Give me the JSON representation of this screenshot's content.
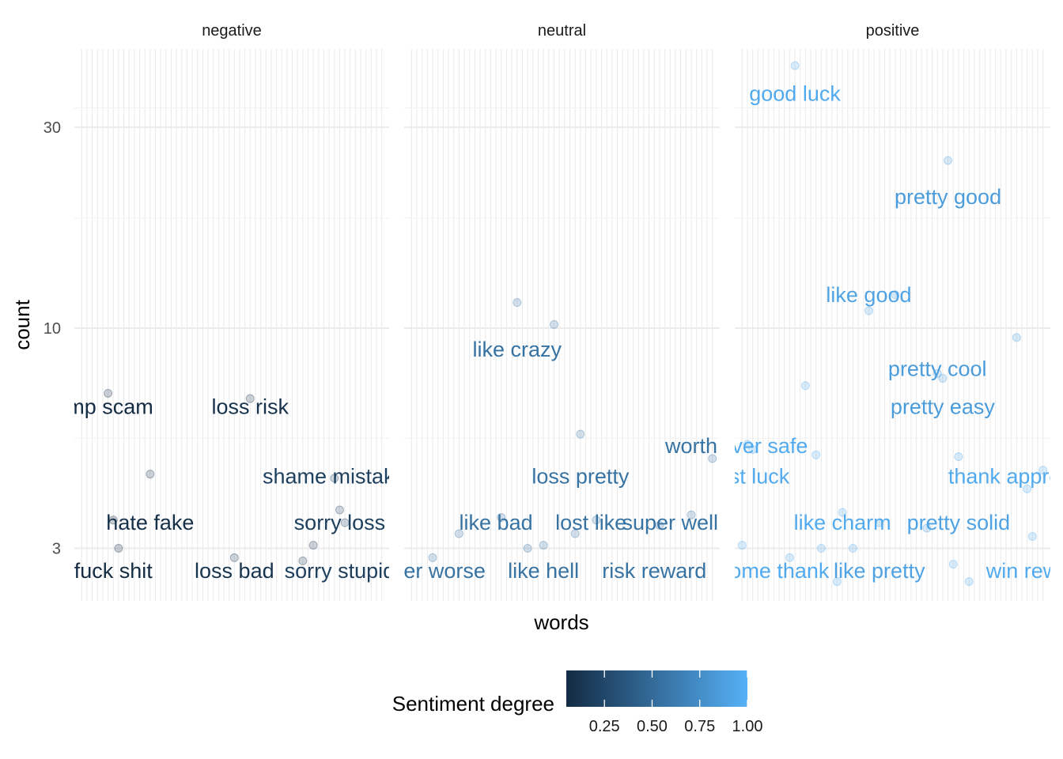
{
  "chart_data": {
    "type": "scatter",
    "title": "",
    "xlabel": "words",
    "ylabel": "count",
    "y_scale": "log10",
    "ylim": [
      2.25,
      46
    ],
    "y_ticks": [
      3,
      10,
      30
    ],
    "y_tick_labels": [
      "3",
      "10",
      "30"
    ],
    "grid": true,
    "x_categories_per_panel": 58,
    "facets": [
      {
        "name": "negative",
        "points": [
          {
            "x": 5,
            "y": 7.0,
            "deg": 0.05
          },
          {
            "x": 6,
            "y": 3.5,
            "deg": 0.05
          },
          {
            "x": 7,
            "y": 3.0,
            "deg": 0.05
          },
          {
            "x": 13,
            "y": 4.5,
            "deg": 0.08
          },
          {
            "x": 29,
            "y": 2.85,
            "deg": 0.12
          },
          {
            "x": 32,
            "y": 6.8,
            "deg": 0.1
          },
          {
            "x": 42,
            "y": 2.8,
            "deg": 0.12
          },
          {
            "x": 44,
            "y": 3.05,
            "deg": 0.12
          },
          {
            "x": 48,
            "y": 4.4,
            "deg": 0.2
          },
          {
            "x": 49,
            "y": 3.7,
            "deg": 0.2
          },
          {
            "x": 50,
            "y": 3.45,
            "deg": 0.2
          }
        ],
        "labels": [
          {
            "text": "trump scam",
            "x": 3,
            "y": 6.5,
            "deg": 0.05
          },
          {
            "text": "hate fake",
            "x": 13,
            "y": 3.45,
            "deg": 0.08
          },
          {
            "text": "fuck shit",
            "x": 6,
            "y": 2.65,
            "deg": 0.05
          },
          {
            "text": "loss risk",
            "x": 32,
            "y": 6.5,
            "deg": 0.1
          },
          {
            "text": "loss bad",
            "x": 29,
            "y": 2.65,
            "deg": 0.12
          },
          {
            "text": "shame mistake",
            "x": 48,
            "y": 4.45,
            "deg": 0.2
          },
          {
            "text": "sorry loss",
            "x": 49,
            "y": 3.45,
            "deg": 0.2
          },
          {
            "text": "sorry stupid",
            "x": 49,
            "y": 2.65,
            "deg": 0.2
          }
        ]
      },
      {
        "name": "neutral",
        "points": [
          {
            "x": 4,
            "y": 2.85,
            "deg": 0.55
          },
          {
            "x": 9,
            "y": 3.25,
            "deg": 0.55
          },
          {
            "x": 17,
            "y": 3.55,
            "deg": 0.55
          },
          {
            "x": 20,
            "y": 11.5,
            "deg": 0.55
          },
          {
            "x": 22,
            "y": 3.0,
            "deg": 0.55
          },
          {
            "x": 25,
            "y": 3.05,
            "deg": 0.55
          },
          {
            "x": 27,
            "y": 10.2,
            "deg": 0.55
          },
          {
            "x": 31,
            "y": 3.25,
            "deg": 0.55
          },
          {
            "x": 32,
            "y": 5.6,
            "deg": 0.55
          },
          {
            "x": 35,
            "y": 3.5,
            "deg": 0.55
          },
          {
            "x": 47,
            "y": 3.4,
            "deg": 0.55
          },
          {
            "x": 53,
            "y": 3.6,
            "deg": 0.55
          },
          {
            "x": 57,
            "y": 4.9,
            "deg": 0.55
          }
        ],
        "labels": [
          {
            "text": "like crazy",
            "x": 20,
            "y": 8.9,
            "deg": 0.55
          },
          {
            "text": "loss pretty",
            "x": 32,
            "y": 4.45,
            "deg": 0.55
          },
          {
            "text": "worth",
            "x": 53,
            "y": 5.25,
            "deg": 0.55
          },
          {
            "text": "like bad",
            "x": 16,
            "y": 3.45,
            "deg": 0.55
          },
          {
            "text": "lost like",
            "x": 34,
            "y": 3.45,
            "deg": 0.55
          },
          {
            "text": "super well",
            "x": 49,
            "y": 3.45,
            "deg": 0.55
          },
          {
            "text": "never worse",
            "x": 3,
            "y": 2.65,
            "deg": 0.55
          },
          {
            "text": "like hell",
            "x": 25,
            "y": 2.65,
            "deg": 0.55
          },
          {
            "text": "risk reward",
            "x": 46,
            "y": 2.65,
            "deg": 0.55
          }
        ]
      },
      {
        "name": "positive",
        "points": [
          {
            "x": 0,
            "y": 3.05,
            "deg": 0.95
          },
          {
            "x": 1,
            "y": 5.3,
            "deg": 0.95
          },
          {
            "x": 2,
            "y": 5.15,
            "deg": 0.95
          },
          {
            "x": 9,
            "y": 2.85,
            "deg": 0.95
          },
          {
            "x": 10,
            "y": 42,
            "deg": 0.95
          },
          {
            "x": 12,
            "y": 7.3,
            "deg": 0.95
          },
          {
            "x": 14,
            "y": 5.0,
            "deg": 0.95
          },
          {
            "x": 15,
            "y": 3.0,
            "deg": 0.95
          },
          {
            "x": 18,
            "y": 2.5,
            "deg": 0.95
          },
          {
            "x": 19,
            "y": 3.65,
            "deg": 0.95
          },
          {
            "x": 21,
            "y": 3.0,
            "deg": 0.95
          },
          {
            "x": 24,
            "y": 11.0,
            "deg": 0.9
          },
          {
            "x": 26,
            "y": 3.45,
            "deg": 0.9
          },
          {
            "x": 29,
            "y": 12.0,
            "deg": 0.9
          },
          {
            "x": 35,
            "y": 3.35,
            "deg": 0.85
          },
          {
            "x": 37,
            "y": 7.8,
            "deg": 0.85
          },
          {
            "x": 38,
            "y": 7.6,
            "deg": 0.85
          },
          {
            "x": 39,
            "y": 25,
            "deg": 0.85
          },
          {
            "x": 40,
            "y": 2.75,
            "deg": 0.95
          },
          {
            "x": 41,
            "y": 4.95,
            "deg": 0.95
          },
          {
            "x": 43,
            "y": 2.5,
            "deg": 0.95
          },
          {
            "x": 52,
            "y": 9.5,
            "deg": 0.85
          },
          {
            "x": 54,
            "y": 4.15,
            "deg": 0.95
          },
          {
            "x": 55,
            "y": 3.2,
            "deg": 0.95
          },
          {
            "x": 57,
            "y": 4.6,
            "deg": 0.95
          }
        ],
        "labels": [
          {
            "text": "good luck",
            "x": 10,
            "y": 36,
            "deg": 0.95
          },
          {
            "text": "pretty good",
            "x": 39,
            "y": 20.5,
            "deg": 0.85
          },
          {
            "text": "like good",
            "x": 24,
            "y": 12.0,
            "deg": 0.9
          },
          {
            "text": "pretty cool",
            "x": 37,
            "y": 8.0,
            "deg": 0.85
          },
          {
            "text": "pretty easy",
            "x": 38,
            "y": 6.5,
            "deg": 0.85
          },
          {
            "text": "never safe",
            "x": 3,
            "y": 5.25,
            "deg": 0.95
          },
          {
            "text": "best luck",
            "x": 1,
            "y": 4.45,
            "deg": 0.95
          },
          {
            "text": "thank appreciate",
            "x": 54,
            "y": 4.45,
            "deg": 0.95
          },
          {
            "text": "like charm",
            "x": 19,
            "y": 3.45,
            "deg": 0.95
          },
          {
            "text": "pretty solid",
            "x": 41,
            "y": 3.45,
            "deg": 0.9
          },
          {
            "text": "welcome thank",
            "x": 3,
            "y": 2.65,
            "deg": 0.95
          },
          {
            "text": "like pretty",
            "x": 26,
            "y": 2.65,
            "deg": 0.9
          },
          {
            "text": "win reward",
            "x": 56,
            "y": 2.65,
            "deg": 0.95
          }
        ]
      }
    ],
    "legend": {
      "title": "Sentiment degree",
      "placement": "bottom",
      "range": [
        0.05,
        1.0
      ],
      "ticks": [
        0.25,
        0.5,
        0.75,
        1.0
      ],
      "tick_labels": [
        "0.25",
        "0.50",
        "0.75",
        "1.00"
      ],
      "color_low": "#132B43",
      "color_high": "#56B1F7"
    }
  }
}
